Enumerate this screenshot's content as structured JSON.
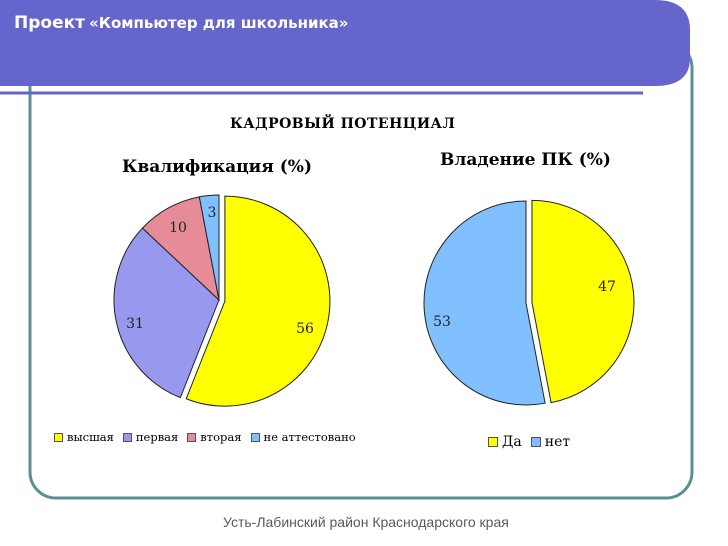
{
  "header": {
    "project_label": "Проект",
    "project_name": "«Компьютер для школьника»"
  },
  "main_title": "КАДРОВЫЙ ПОТЕНЦИАЛ",
  "footer": "Усть-Лабинский район Краснодарского края",
  "colors": {
    "banner": "#6565cc",
    "frame": "#5b9092",
    "yellow": "#ffff00",
    "periwinkle": "#9898ee",
    "pink": "#e68c98",
    "light_blue": "#80c0ff"
  },
  "chart_data": [
    {
      "type": "pie",
      "title": "Квалификация  (%)",
      "categories": [
        "высшая",
        "первая",
        "вторая",
        "не аттестовано"
      ],
      "values": [
        56,
        31,
        10,
        3
      ],
      "colors": [
        "#ffff00",
        "#9898ee",
        "#e68c98",
        "#80c0ff"
      ],
      "exploded": "высшая",
      "legend": "bottom"
    },
    {
      "type": "pie",
      "title": "Владение ПК (%)",
      "categories": [
        "Да",
        "нет"
      ],
      "values": [
        47,
        53
      ],
      "colors": [
        "#ffff00",
        "#80c0ff"
      ],
      "exploded": "Да",
      "legend": "bottom"
    }
  ]
}
